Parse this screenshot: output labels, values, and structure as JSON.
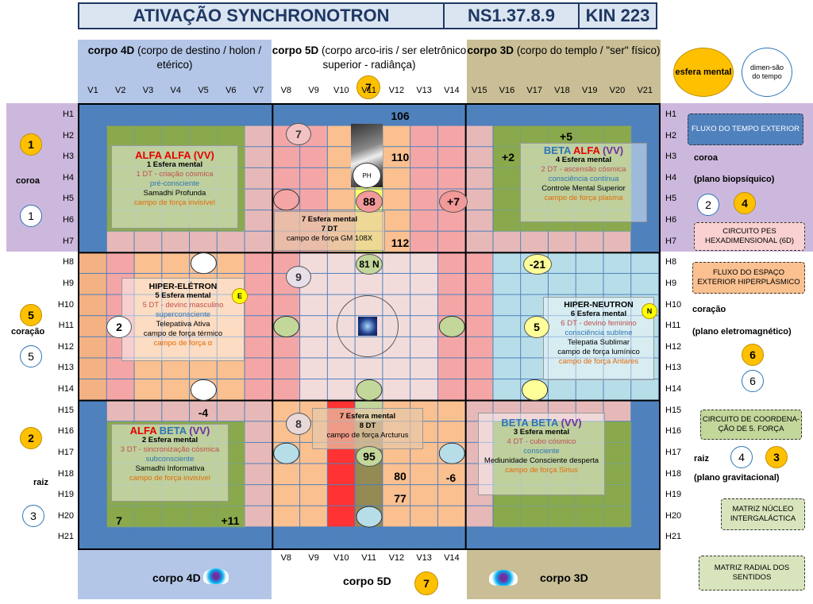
{
  "title": {
    "main": "ATIVAÇÃO SYNCHRONOTRON",
    "code": "NS1.37.8.9",
    "kin": "KIN 223"
  },
  "headers": {
    "body4d": {
      "bold": "corpo 4D",
      "rest": "(corpo de destino / holon / etérico)"
    },
    "body5d": {
      "bold": "corpo 5D",
      "rest": "(corpo arco-iris / ser eletrônico superior - radiânça)"
    },
    "body3d": {
      "bold": "corpo 3D",
      "rest": "(corpo do templo / \"ser\" físico)"
    },
    "legend_mental": "esfera mental",
    "legend_time": "dimen-são do tempo",
    "top_num": "7"
  },
  "columns": [
    "V1",
    "V2",
    "V3",
    "V4",
    "V5",
    "V6",
    "V7",
    "V8",
    "V9",
    "V10",
    "V11",
    "V12",
    "V13",
    "V14",
    "V15",
    "V16",
    "V17",
    "V18",
    "V19",
    "V20",
    "V21"
  ],
  "rows": [
    "H1",
    "H2",
    "H3",
    "H4",
    "H5",
    "H6",
    "H7",
    "H8",
    "H9",
    "H10",
    "H11",
    "H12",
    "H13",
    "H14",
    "H15",
    "H16",
    "H17",
    "H18",
    "H19",
    "H20",
    "H21"
  ],
  "left": {
    "coroa": {
      "label": "coroa",
      "y": "1",
      "w": "1"
    },
    "coracao": {
      "label": "coração",
      "y": "5",
      "w": "5"
    },
    "raiz": {
      "label": "raiz",
      "y": "2",
      "w": "3"
    }
  },
  "right": {
    "coroa": {
      "label": "coroa",
      "sub": "(plano biopsíquico)",
      "w": "2",
      "y": "4"
    },
    "coracao": {
      "label": "coração",
      "sub": "(plano eletromagnético)",
      "y": "6",
      "w": "6"
    },
    "raiz": {
      "label": "raiz",
      "sub": "(plano gravitacional)",
      "w": "4",
      "y": "3"
    }
  },
  "callouts": {
    "c1": "FLUXO DO TEMPO EXTERIOR",
    "c2": "CIRCUITO PES HEXADIMENSIONAL (6D)",
    "c3": "FLUXO DO ESPAÇO EXTERIOR HIPERPLÁSMICO",
    "c4": "CIRCUITO DE COORDENA-ÇÃO DE 5. FORÇA",
    "c5": "MATRIZ NÚCLEO INTERGALÁCTICA",
    "c6": "MATRIZ RADIAL DOS SENTIDOS"
  },
  "boxes": {
    "alfa_alfa": {
      "t1": "ALFA",
      "t2": "ALFA",
      "t3": "(VV)",
      "l1": "1 Esfera mental",
      "l2": "1 DT - criação cósmica",
      "l3": "pré-consciente",
      "l4": "Samadhi Profunda",
      "l5": "campo de força invisível"
    },
    "beta_alfa": {
      "t1": "BETA",
      "t2": "ALFA",
      "t3": "(VV)",
      "l1": "4 Esfera mental",
      "l2": "2 DT - ascensão cósmica",
      "l3": "consciência contínua",
      "l4": "Controle Mental Superior",
      "l5": "campo de força plasma"
    },
    "center_top": {
      "l1": "7 Esfera mental",
      "l2": "7 DT",
      "l3": "campo de força GM 108X"
    },
    "hiper_eletron": {
      "t": "HIPER-ELÉTRON",
      "l1": "5 Esfera mental",
      "l2": "5 DT - devinc masculino",
      "l3": "superconsciente",
      "l4": "Telepatiiva Ativa",
      "l5": "campo de força térmico",
      "l6": "campo de força α"
    },
    "hiper_neutron": {
      "t": "HIPER-NEUTRON",
      "l1": "6 Esfera mental",
      "l2": "6 DT - devino feminino",
      "l3": "consciência sublime",
      "l4": "Telepatia Sublimar",
      "l5": "campo de força lumínico",
      "l6": "campo de força Antares"
    },
    "center_bottom": {
      "l1": "7 Esfera mental",
      "l2": "8 DT",
      "l3": "campo de força Arcturus"
    },
    "alfa_beta": {
      "t1": "ALFA",
      "t2": "BETA",
      "t3": "(VV)",
      "l1": "2 Esfera mental",
      "l2": "3 DT - sincronização cósmica",
      "l3": "subconsciente",
      "l4": "Samadhi Informativa",
      "l5": "campo de força invisível"
    },
    "beta_beta": {
      "t1": "BETA",
      "t2": "BETA",
      "t3": "(VV)",
      "l1": "3 Esfera mental",
      "l2": "4 DT - cubo cósmico",
      "l3": "consciente",
      "l4": "Mediunidade Consciente desperta",
      "l5": "campo de força Sirius"
    }
  },
  "numbers": {
    "n106": "106",
    "n110": "110",
    "n112": "112",
    "n88": "88",
    "n81": "81 N",
    "n95": "95",
    "n80": "80",
    "n77": "77",
    "p5": "+5",
    "p2": "+2",
    "p7": "+7",
    "m21": "-21",
    "m4": "-4",
    "m6": "-6",
    "n7": "7",
    "p11": "+11",
    "c7a": "7",
    "c9": "9",
    "c8": "8",
    "c2": "2",
    "c5": "5",
    "e": "E",
    "nn": "N",
    "ph": "PH"
  },
  "footer": {
    "body4d": "corpo 4D",
    "body5d": "corpo 5D",
    "body3d": "corpo 3D",
    "num": "7"
  }
}
